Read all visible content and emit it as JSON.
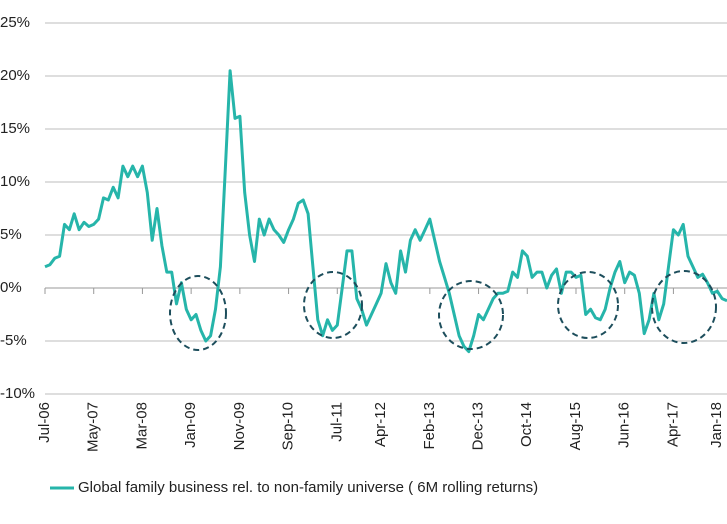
{
  "chart_data": {
    "type": "line",
    "categories": [
      "Jul-06",
      null,
      null,
      null,
      null,
      null,
      null,
      null,
      null,
      null,
      "May-07",
      null,
      null,
      null,
      null,
      null,
      null,
      null,
      null,
      null,
      "Mar-08",
      null,
      null,
      null,
      null,
      null,
      null,
      null,
      null,
      null,
      "Jan-09",
      null,
      null,
      null,
      null,
      null,
      null,
      null,
      null,
      null,
      "Nov-09",
      null,
      null,
      null,
      null,
      null,
      null,
      null,
      null,
      null,
      "Sep-10",
      null,
      null,
      null,
      null,
      null,
      null,
      null,
      null,
      null,
      "Jul-11",
      null,
      null,
      null,
      null,
      null,
      null,
      null,
      null,
      "Apr-12",
      null,
      null,
      null,
      null,
      null,
      null,
      null,
      null,
      null,
      "Feb-13",
      null,
      null,
      null,
      null,
      null,
      null,
      null,
      null,
      null,
      "Dec-13",
      null,
      null,
      null,
      null,
      null,
      null,
      null,
      null,
      null,
      "Oct-14",
      null,
      null,
      null,
      null,
      null,
      null,
      null,
      null,
      null,
      "Aug-15",
      null,
      null,
      null,
      null,
      null,
      null,
      null,
      null,
      null,
      "Jun-16",
      null,
      null,
      null,
      null,
      null,
      null,
      null,
      null,
      null,
      "Apr-17",
      null,
      null,
      null,
      null,
      null,
      null,
      null,
      null,
      "Jan-18",
      null,
      null
    ],
    "series": [
      {
        "name": "Global family business rel. to non-family universe ( 6M rolling returns)",
        "color": "#26b5aa",
        "values": [
          2,
          2.2,
          2.8,
          3,
          6,
          5.5,
          7,
          5.5,
          6.2,
          5.8,
          6,
          6.5,
          8.5,
          8.3,
          9.5,
          8.5,
          11.5,
          10.5,
          11.5,
          10.5,
          11.5,
          9,
          4.5,
          7.5,
          4,
          1.5,
          1.5,
          -1.5,
          0.5,
          -2,
          -3,
          -2.5,
          -4,
          -5,
          -4.5,
          -2,
          2,
          11,
          20.5,
          16,
          16.2,
          9,
          5,
          2.5,
          6.5,
          5,
          6.5,
          5.5,
          5,
          4.3,
          5.5,
          6.5,
          8,
          8.3,
          7,
          2,
          -3,
          -4.5,
          -3,
          -4,
          -3.5,
          0,
          3.5,
          3.5,
          -1,
          -2,
          -3.5,
          -2.5,
          -1.5,
          -0.5,
          2.3,
          0.5,
          -0.5,
          3.5,
          1.5,
          4.5,
          5.5,
          4.5,
          5.5,
          6.5,
          4.5,
          2.5,
          1,
          -0.5,
          -2.5,
          -4.5,
          -5.5,
          -6,
          -4.5,
          -2.5,
          -3,
          -2,
          -1,
          -0.5,
          -0.5,
          -0.3,
          1.5,
          1,
          3.5,
          3,
          1,
          1.5,
          1.5,
          0,
          1.2,
          1.8,
          -0.5,
          1.5,
          1.5,
          1,
          1.2,
          -2.5,
          -2,
          -2.8,
          -3,
          -2,
          0,
          1.5,
          2.5,
          0.5,
          1.5,
          1.2,
          -0.5,
          -4.3,
          -3,
          -0.5,
          -3,
          -1.5,
          2,
          5.5,
          5,
          6,
          3,
          2,
          1,
          1.3,
          0.5,
          -0.5,
          -0.3,
          -1,
          -1.2
        ]
      }
    ],
    "ylim": [
      -10,
      25
    ],
    "yticks": [
      {
        "value": -10,
        "label": "-10%"
      },
      {
        "value": -5,
        "label": "-5%"
      },
      {
        "value": 0,
        "label": "0%"
      },
      {
        "value": 5,
        "label": "5%"
      },
      {
        "value": 10,
        "label": "10%"
      },
      {
        "value": 15,
        "label": "15%"
      },
      {
        "value": 20,
        "label": "20%"
      },
      {
        "value": 25,
        "label": "25%"
      }
    ],
    "grid": true,
    "legend": "bottom-left"
  }
}
